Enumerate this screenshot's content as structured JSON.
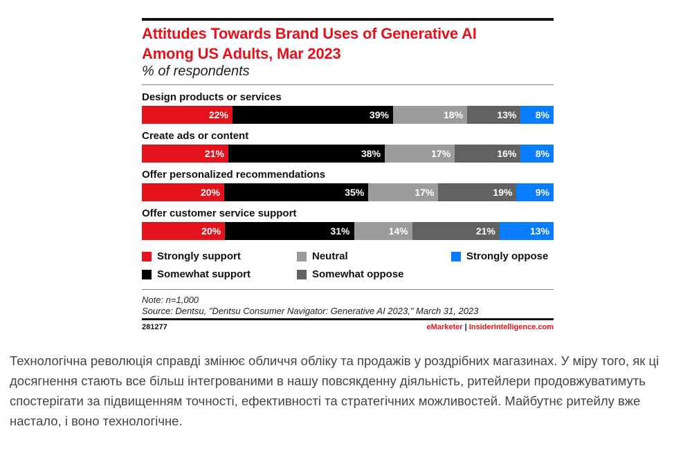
{
  "chart_data": {
    "type": "bar",
    "orientation": "horizontal",
    "stacked": true,
    "title_lines": [
      "Attitudes Towards Brand Uses of Generative AI",
      "Among US Adults, Mar 2023"
    ],
    "subtitle": "% of respondents",
    "categories": [
      "Design products or services",
      "Create ads or content",
      "Offer personalized recommendations",
      "Offer customer service support"
    ],
    "series": [
      {
        "name": "Strongly support",
        "color": "#e4121c",
        "values": [
          22,
          21,
          20,
          20
        ]
      },
      {
        "name": "Somewhat support",
        "color": "#000000",
        "values": [
          39,
          38,
          35,
          31
        ]
      },
      {
        "name": "Neutral",
        "color": "#9b9b9b",
        "values": [
          18,
          17,
          17,
          14
        ]
      },
      {
        "name": "Somewhat oppose",
        "color": "#626262",
        "values": [
          13,
          16,
          19,
          21
        ]
      },
      {
        "name": "Strongly oppose",
        "color": "#0a7cff",
        "values": [
          8,
          8,
          9,
          13
        ]
      }
    ],
    "xlim": [
      0,
      100
    ],
    "legend_position": "bottom",
    "grid": false,
    "note": "Note: n=1,000",
    "source": "Source: Dentsu, \"Dentsu Consumer Navigator: Generative AI 2023,\" March 31, 2023",
    "chart_id": "281277",
    "brand_left": "eMarketer",
    "brand_sep": "|",
    "brand_right": "InsiderIntelligence.com"
  },
  "article": {
    "paragraph": "Технологічна революція справді змінює обличчя обліку та продажів у роздрібних магазинах. У міру того, як ці досягнення стають все більш інтегрованими в нашу повсякденну діяльність, ритейлери продовжуватимуть спостерігати за підвищенням точності, ефективності та стратегічних можливостей. Майбутнє ритейлу вже настало, і воно технологічне."
  }
}
